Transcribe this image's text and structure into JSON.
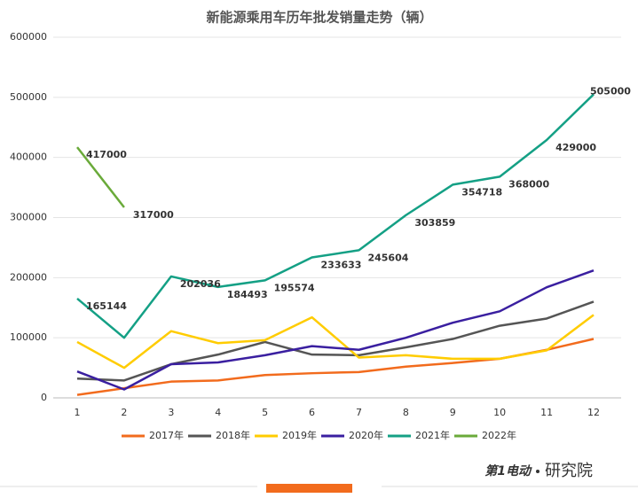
{
  "chart_data": {
    "type": "line",
    "title": "新能源乘用车历年批发销量走势（辆）",
    "categories": [
      "1",
      "2",
      "3",
      "4",
      "5",
      "6",
      "7",
      "8",
      "9",
      "10",
      "11",
      "12"
    ],
    "ylim": [
      0,
      600000
    ],
    "yticks": [
      0,
      100000,
      200000,
      300000,
      400000,
      500000,
      600000
    ],
    "legend": "bottom",
    "series": [
      {
        "name": "2017年",
        "color": "#f26b1d",
        "values": [
          5000,
          16000,
          27000,
          29000,
          38000,
          41000,
          43000,
          52000,
          58000,
          65000,
          80000,
          98000
        ]
      },
      {
        "name": "2018年",
        "color": "#555555",
        "values": [
          32000,
          29000,
          56000,
          72000,
          93000,
          72000,
          71000,
          84000,
          98000,
          120000,
          132000,
          160000
        ]
      },
      {
        "name": "2019年",
        "color": "#ffcc00",
        "values": [
          93000,
          50000,
          111000,
          91000,
          96000,
          134000,
          67000,
          71000,
          65000,
          65000,
          79000,
          138000
        ]
      },
      {
        "name": "2020年",
        "color": "#3a1fa0",
        "values": [
          44000,
          14000,
          56000,
          59000,
          71000,
          86000,
          80000,
          100000,
          125000,
          144000,
          184000,
          212000
        ]
      },
      {
        "name": "2021年",
        "color": "#14a085",
        "values": [
          165144,
          100000,
          202036,
          184493,
          195574,
          233633,
          245604,
          303859,
          354718,
          368000,
          429000,
          505000
        ],
        "value_labels": [
          "165144",
          null,
          "202036",
          "184493",
          "195574",
          "233633",
          "245604",
          "303859",
          "354718",
          "368000",
          "429000",
          "505000"
        ]
      },
      {
        "name": "2022年",
        "color": "#6aaa3a",
        "values": [
          417000,
          317000,
          null,
          null,
          null,
          null,
          null,
          null,
          null,
          null,
          null,
          null
        ],
        "value_labels": [
          "417000",
          "317000",
          null,
          null,
          null,
          null,
          null,
          null,
          null,
          null,
          null,
          null
        ]
      }
    ]
  },
  "footer": {
    "brand": "第1电动",
    "suffix": "研究院"
  }
}
